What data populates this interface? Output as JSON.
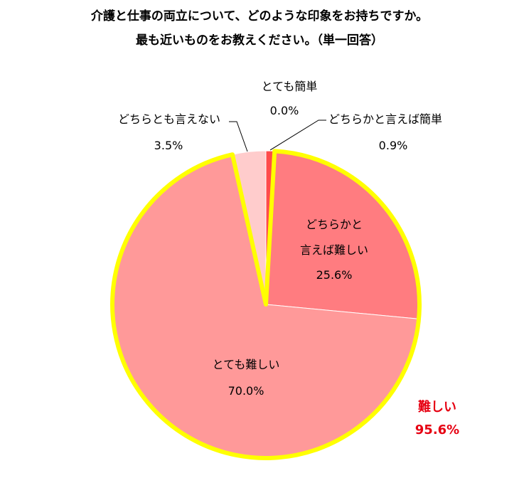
{
  "chart_data": {
    "type": "pie",
    "title": "介護と仕事の両立について、どのような印象をお持ちですか。",
    "subtitle": "最も近いものをお教えください。（単一回答）",
    "slices": [
      {
        "label": "とても簡単",
        "value": 0.0,
        "value_text": "0.0%",
        "color": "#ff0000"
      },
      {
        "label": "どちらかと言えば簡単",
        "value": 0.9,
        "value_text": "0.9%",
        "color": "#ff4b4b"
      },
      {
        "label_line1": "どちらかと",
        "label_line2": "言えば難しい",
        "value": 25.6,
        "value_text": "25.6%",
        "color": "#ff7c80"
      },
      {
        "label": "とても難しい",
        "value": 70.0,
        "value_text": "70.0%",
        "color": "#ff9999"
      },
      {
        "label": "どちらとも言えない",
        "value": 3.5,
        "value_text": "3.5%",
        "color": "#ffcccc"
      }
    ],
    "highlight": {
      "label": "難しい",
      "value": 95.6,
      "value_text": "95.6%",
      "color": "#e60012",
      "outline_color": "#ffff00"
    }
  }
}
